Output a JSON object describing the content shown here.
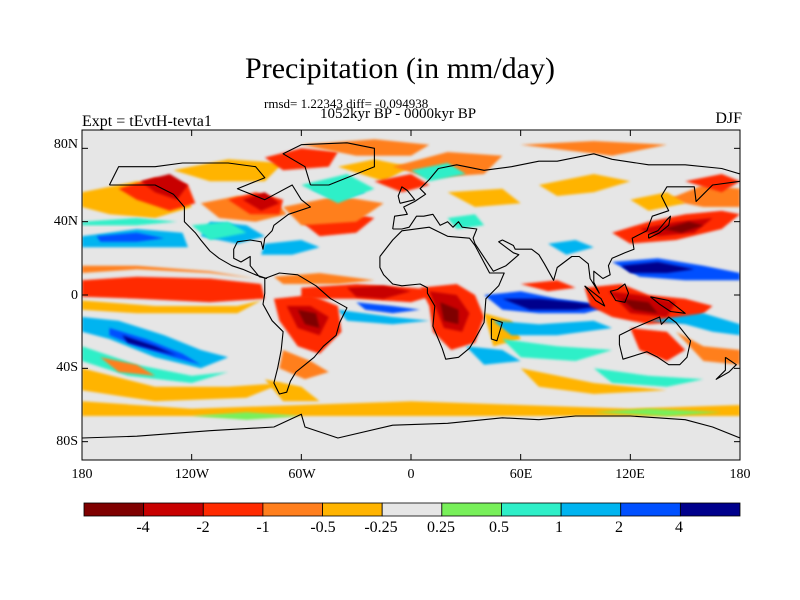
{
  "title": "Precipitation (in mm/day)",
  "stats": "rmsd= 1.22343 diff= -0.094938",
  "period": "1052kyr BP - 0000kyr BP",
  "experiment": "Expt = tEvtH-tevta1",
  "season": "DJF",
  "lat_labels": [
    "80N",
    "40N",
    "0",
    "40S",
    "80S"
  ],
  "lon_labels": [
    "180",
    "120W",
    "60W",
    "0",
    "60E",
    "120E",
    "180"
  ],
  "colorbar": {
    "colors": [
      "#7f0000",
      "#c80000",
      "#ff2a00",
      "#ff7f1e",
      "#ffb400",
      "#e6e6e6",
      "#78f05a",
      "#2eefc8",
      "#00b4f0",
      "#0050ff",
      "#00008c"
    ],
    "labels": [
      "-4",
      "-2",
      "-1",
      "-0.5",
      "-0.25",
      "0.25",
      "0.5",
      "1",
      "2",
      "4"
    ]
  },
  "chart_data": {
    "type": "heatmap",
    "title": "Precipitation (in mm/day)",
    "variable": "Precipitation difference",
    "units": "mm/day",
    "season": "DJF",
    "experiment": "Expt = tEvtH-tevta1",
    "period": "1052kyr BP - 0000kyr BP",
    "rmsd": 1.22343,
    "diff": -0.094938,
    "xlim": [
      -180,
      180
    ],
    "ylim": [
      -90,
      90
    ],
    "x_ticks": [
      -180,
      -120,
      -60,
      0,
      60,
      120,
      180
    ],
    "y_ticks": [
      80,
      40,
      0,
      -40,
      -80
    ],
    "levels": [
      -4,
      -2,
      -1,
      -0.5,
      -0.25,
      0.25,
      0.5,
      1,
      2,
      4
    ]
  }
}
